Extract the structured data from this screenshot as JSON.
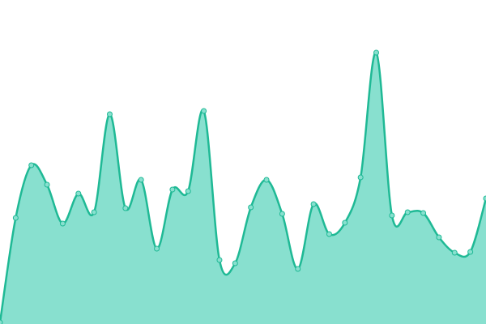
{
  "chart_data": {
    "type": "area",
    "x": [
      0,
      1,
      2,
      3,
      4,
      5,
      6,
      7,
      8,
      9,
      10,
      11,
      12,
      13,
      14,
      15,
      16,
      17,
      18,
      19,
      20,
      21,
      22,
      23,
      24,
      25,
      26,
      27,
      28,
      29,
      30,
      31
    ],
    "values": [
      2,
      131,
      196,
      172,
      124,
      161,
      138,
      259,
      143,
      178,
      93,
      166,
      164,
      263,
      79,
      75,
      144,
      178,
      136,
      68,
      148,
      111,
      125,
      181,
      335,
      134,
      138,
      137,
      107,
      88,
      89,
      155
    ],
    "xlim": [
      0,
      31
    ],
    "ylim": [
      0,
      400
    ],
    "color": "#1fb995",
    "fill": "#88e0cf"
  }
}
